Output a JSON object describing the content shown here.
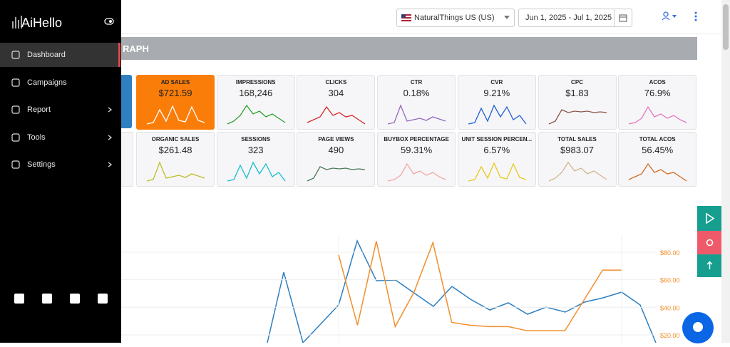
{
  "sidebar": {
    "brand": "AiHello",
    "nav": [
      "Dashboard",
      "Campaigns",
      "Report",
      "Tools",
      "Settings"
    ]
  },
  "topbar": {
    "marketplace": "NaturalThings US (US)",
    "date_range": "Jun 1, 2025 - Jul 1, 2025"
  },
  "section": {
    "title": "RAPH"
  },
  "metrics": [
    [
      {
        "label": "AD SALES",
        "value": "$721.59"
      },
      {
        "label": "IMPRESSIONS",
        "value": "168,246"
      },
      {
        "label": "CLICKS",
        "value": "304"
      },
      {
        "label": "CTR",
        "value": "0.18%"
      },
      {
        "label": "CVR",
        "value": "9.21%"
      },
      {
        "label": "CPC",
        "value": "$1.83"
      },
      {
        "label": "ACOS",
        "value": "76.9%"
      }
    ],
    [
      {
        "label": "ORGANIC SALES",
        "value": "$261.48"
      },
      {
        "label": "SESSIONS",
        "value": "323"
      },
      {
        "label": "PAGE VIEWS",
        "value": "490"
      },
      {
        "label": "BUYBOX PERCENTAGE",
        "value": "59.31%"
      },
      {
        "label": "UNIT SESSION PERCEN...",
        "value": "6.57%"
      },
      {
        "label": "TOTAL SALES",
        "value": "$983.07"
      },
      {
        "label": "TOTAL ACOS",
        "value": "56.45%"
      }
    ]
  ],
  "chart": {
    "type": "line",
    "y2lim": [
      14.3,
      92.4
    ],
    "y2ticks": [
      {
        "value": 80,
        "label": "$80.00"
      },
      {
        "value": 60,
        "label": "$60.00"
      },
      {
        "value": 40,
        "label": "$40.00"
      },
      {
        "value": 20,
        "label": "$20.00"
      }
    ],
    "series": [
      {
        "color": "#f28e2b",
        "axis": "y2",
        "values": [
          78,
          27,
          88,
          26,
          51,
          87,
          29,
          27,
          26,
          26,
          23,
          23,
          23,
          45,
          67,
          67
        ]
      }
    ]
  }
}
